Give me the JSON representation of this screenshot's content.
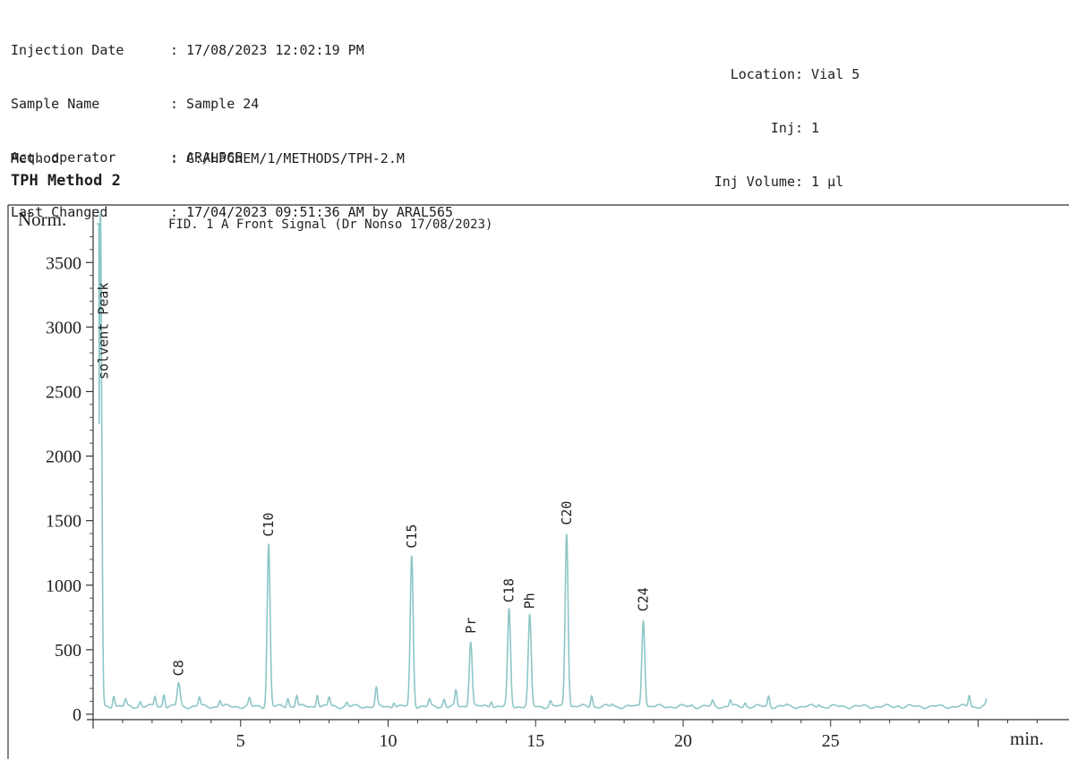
{
  "header": {
    "injection_date_label": "Injection Date",
    "injection_date": ": 17/08/2023 12:02:19 PM",
    "sample_name_label": "Sample Name",
    "sample_name": ": Sample 24",
    "operator_label": "Acq. operator",
    "operator": ": ARAL565",
    "location_label": "Location",
    "location": ": Vial 5",
    "inj_label": "Inj",
    "inj": ": 1",
    "inj_volume_label": "Inj Volume",
    "inj_volume": ": 1 µl",
    "method_label": "Method",
    "method": ": C:/HPCHEM/1/METHODS/TPH-2.M",
    "last_changed_label": "Last Changed",
    "last_changed": ": 17/04/2023 09:51:36 AM by ARAL565"
  },
  "section_title": "TPH Method 2",
  "chart_data": {
    "type": "line",
    "title": "FID. 1 A Front Signal (Dr Nonso 17/08/2023)",
    "ylabel": "Norm.",
    "xlabel": "min.",
    "xlim": [
      0,
      32.2
    ],
    "ylim": [
      -60,
      3850
    ],
    "y_ticks": [
      0,
      500,
      1000,
      1500,
      2000,
      2500,
      3000,
      3500
    ],
    "x_ticks": [
      5,
      10,
      15,
      20,
      25
    ],
    "baseline": 60,
    "color": "#8ec6c6",
    "peaks": [
      {
        "label": "solvent Peak",
        "x": 0.25,
        "y": 3900
      },
      {
        "label": "C8",
        "x": 2.9,
        "y": 240
      },
      {
        "label": "C10",
        "x": 5.95,
        "y": 1320
      },
      {
        "label": "C15",
        "x": 10.8,
        "y": 1230
      },
      {
        "label": "Pr",
        "x": 12.8,
        "y": 570
      },
      {
        "label": "C18",
        "x": 14.1,
        "y": 810
      },
      {
        "label": "Ph",
        "x": 14.8,
        "y": 760
      },
      {
        "label": "C20",
        "x": 16.05,
        "y": 1410
      },
      {
        "label": "C24",
        "x": 18.65,
        "y": 740
      }
    ],
    "minor_peaks": [
      {
        "x": 0.7,
        "y": 150
      },
      {
        "x": 1.1,
        "y": 110
      },
      {
        "x": 1.6,
        "y": 100
      },
      {
        "x": 2.1,
        "y": 140
      },
      {
        "x": 2.4,
        "y": 160
      },
      {
        "x": 3.6,
        "y": 130
      },
      {
        "x": 4.3,
        "y": 110
      },
      {
        "x": 5.3,
        "y": 120
      },
      {
        "x": 6.6,
        "y": 130
      },
      {
        "x": 6.9,
        "y": 150
      },
      {
        "x": 7.6,
        "y": 160
      },
      {
        "x": 8.0,
        "y": 130
      },
      {
        "x": 8.6,
        "y": 90
      },
      {
        "x": 9.6,
        "y": 200
      },
      {
        "x": 10.2,
        "y": 100
      },
      {
        "x": 11.4,
        "y": 110
      },
      {
        "x": 11.9,
        "y": 120
      },
      {
        "x": 12.3,
        "y": 180
      },
      {
        "x": 13.5,
        "y": 110
      },
      {
        "x": 15.5,
        "y": 100
      },
      {
        "x": 16.9,
        "y": 150
      },
      {
        "x": 17.6,
        "y": 80
      },
      {
        "x": 20.3,
        "y": 70
      },
      {
        "x": 21.0,
        "y": 100
      },
      {
        "x": 21.6,
        "y": 110
      },
      {
        "x": 22.1,
        "y": 90
      },
      {
        "x": 22.9,
        "y": 140
      },
      {
        "x": 23.5,
        "y": 70
      },
      {
        "x": 24.6,
        "y": 80
      },
      {
        "x": 26.1,
        "y": 60
      },
      {
        "x": 27.3,
        "y": 70
      },
      {
        "x": 29.7,
        "y": 150
      },
      {
        "x": 30.3,
        "y": 110
      }
    ]
  }
}
